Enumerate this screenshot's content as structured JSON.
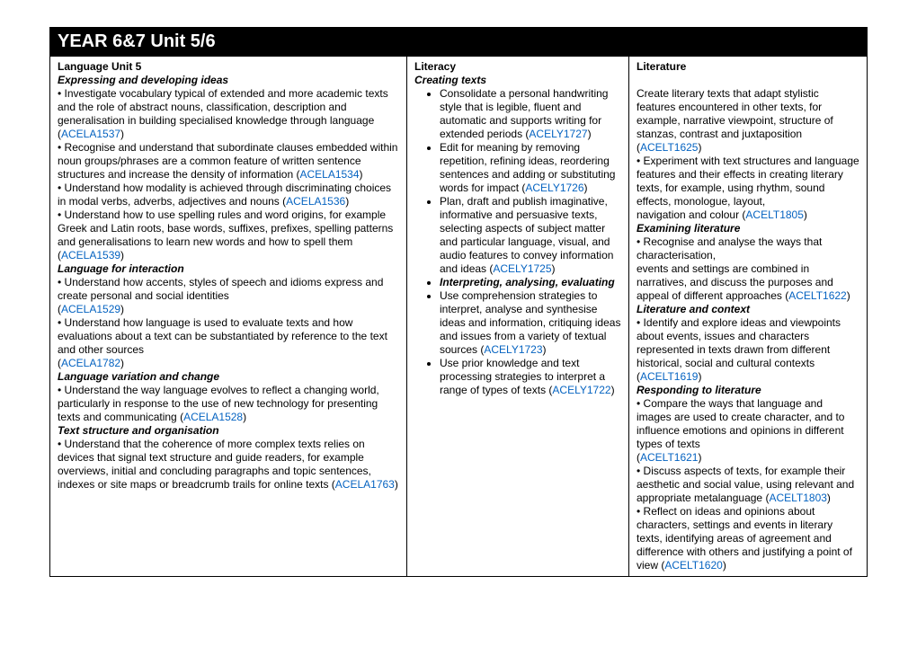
{
  "header": "YEAR  6&7  Unit    5/6",
  "col1": {
    "title": "Language Unit 5",
    "h1": "Expressing and developing ideas",
    "p1a": " • Investigate vocabulary typical of extended and more academic texts and the role of abstract nouns, classification, description and generalisation in building specialised knowledge through language (",
    "p1l": "ACELA1537",
    "p2a": "• Recognise and understand that subordinate clauses embedded within noun groups/phrases are a common feature of written sentence structures and increase the density of information (",
    "p2l": "ACELA1534",
    "p3a": "• Understand how modality is achieved through discriminating choices in modal verbs, adverbs, adjectives and nouns (",
    "p3l": "ACELA1536",
    "p4a": "• Understand how to use spelling rules and word origins, for example Greek and Latin roots, base words, suffixes, prefixes, spelling patterns and generalisations to learn new words and how to spell them",
    "p4l": "ACELA1539",
    "h2": "Language for interaction",
    "p5a": "• Understand how accents, styles of speech and idioms express and create personal and social identities",
    "p5l": "ACELA1529",
    "p6a": "• Understand how language is used to evaluate texts and how evaluations about a text can be substantiated by reference to the text and other sources",
    "p6l": "ACELA1782",
    "h3": "Language variation and change",
    "p7a": "• Understand the way language evolves to reflect a changing world, particularly in response to the use of new technology for presenting texts and communicating (",
    "p7l": "ACELA1528",
    "h4": "Text structure and organisation",
    "p8a": "• Understand that the coherence of more complex texts relies on devices that signal text structure and guide readers, for example overviews, initial and concluding paragraphs and topic sentences, indexes or site maps or breadcrumb trails for online texts (",
    "p8l": "ACELA1763"
  },
  "col2": {
    "title": "Literacy",
    "h1": "Creating texts",
    "li1a": "Consolidate a personal handwriting style that is legible, fluent and automatic and supports writing for extended periods (",
    "li1l": "ACELY1727",
    "li2a": "Edit for meaning by removing repetition, refining ideas, reordering sentences and adding or substituting words for impact (",
    "li2l": "ACELY1726",
    "li3a": "Plan, draft and publish imaginative, informative and persuasive texts, selecting aspects of subject matter and particular language, visual, and audio features to convey information and ideas (",
    "li3l": "ACELY1725",
    "li4": "Interpreting, analysing, evaluating",
    "li5a": "Use comprehension strategies to interpret, analyse and synthesise ideas and information, critiquing ideas and issues from a variety of textual sources (",
    "li5l": "ACELY1723",
    "li6a": "Use prior knowledge and text processing strategies to interpret a range of types of texts (",
    "li6l": "ACELY1722"
  },
  "col3": {
    "title": "Literature",
    "p1a": "Create literary texts that adapt stylistic features encountered in other texts, for example, narrative viewpoint, structure of stanzas, contrast and juxtaposition (",
    "p1l": "ACELT1625",
    "p2a": "• Experiment with text structures and language features and their effects in creating literary texts, for example, using rhythm, sound effects, monologue, layout,",
    "p2b": "navigation and colour (",
    "p2l": "ACELT1805",
    "h1": "Examining literature",
    "p3a": "• Recognise and analyse the ways that characterisation,",
    "p3b": "events and settings are combined in narratives, and discuss the purposes and appeal of different approaches (",
    "p3l": "ACELT1622",
    "h2": "Literature and context",
    "p4a": "• Identify and explore ideas and viewpoints about events, issues and characters represented in texts drawn from different historical, social and cultural contexts (",
    "p4l": "ACELT1619",
    "h3": "Responding to literature",
    "p5a": "• Compare the ways that language and images are used to create character, and to influence emotions and opinions in different types of texts",
    "p5l": "ACELT1621",
    "p6a": "• Discuss aspects of texts, for example their aesthetic and social value, using relevant and appropriate metalanguage (",
    "p6l": "ACELT1803",
    "p7a": "• Reflect on ideas and opinions about characters, settings and events in literary texts, identifying areas of agreement and difference with others and justifying a point of view (",
    "p7l": "ACELT1620"
  }
}
